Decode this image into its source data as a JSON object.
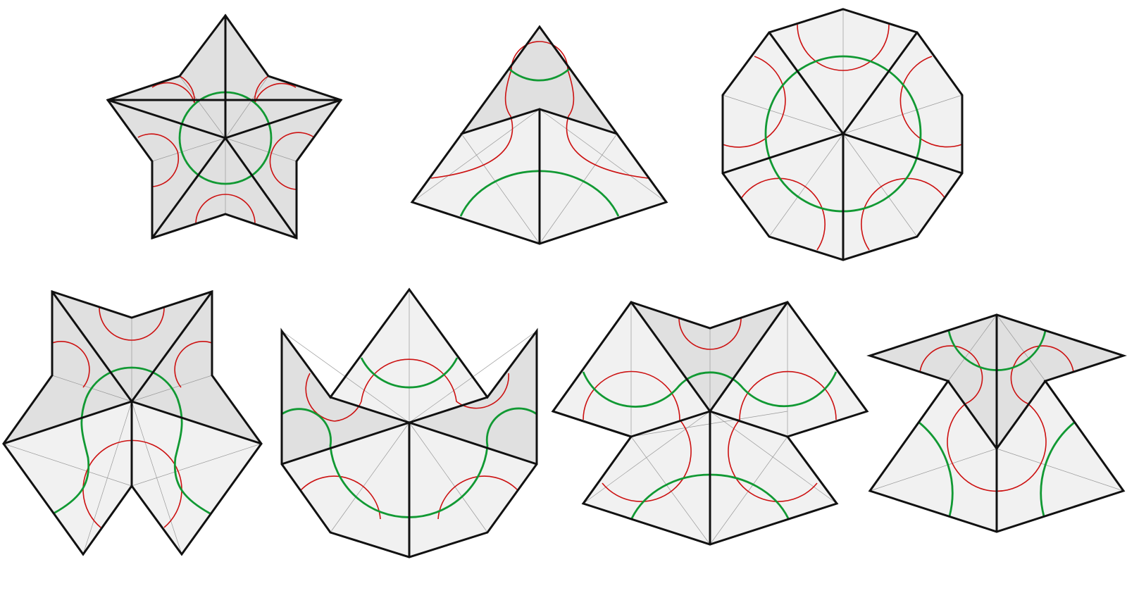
{
  "colors": {
    "background": "#ffffff",
    "tile_dark": "#e0e0e0",
    "tile_light": "#f1f1f1",
    "edge": "#111111",
    "guide_line": "#999999",
    "arc_minor": "#cc1111",
    "arc_major": "#119933"
  },
  "figures": [
    {
      "id": "five-point-star",
      "tile_shade": "dark"
    },
    {
      "id": "triangle-kite",
      "tile_shade": "mixed"
    },
    {
      "id": "decagon",
      "tile_shade": "light"
    },
    {
      "id": "double-arrow",
      "tile_shade": "mixed"
    },
    {
      "id": "crown",
      "tile_shade": "mixed"
    },
    {
      "id": "bowtie",
      "tile_shade": "mixed"
    },
    {
      "id": "wide-star",
      "tile_shade": "mixed"
    }
  ]
}
